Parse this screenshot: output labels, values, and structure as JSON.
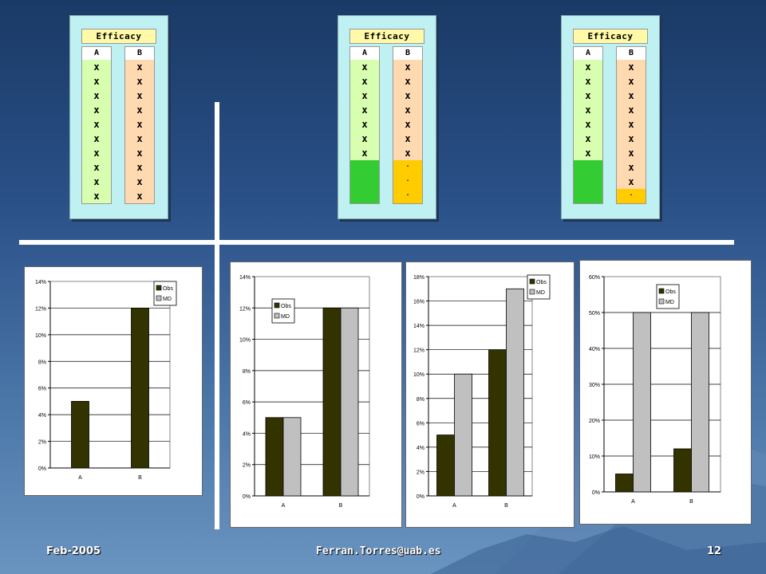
{
  "tables": [
    {
      "title": "Efficacy",
      "col_a": {
        "header": "A",
        "marks": [
          "x",
          "x",
          "x",
          "x",
          "x",
          "x",
          "x",
          "x",
          "x",
          "x"
        ],
        "filled_color": "#33cc33",
        "filled_count": 0,
        "filler": []
      },
      "col_b": {
        "header": "B",
        "marks": [
          "x",
          "x",
          "x",
          "x",
          "x",
          "x",
          "x",
          "x",
          "x",
          "x"
        ],
        "filled_color": "#ffcc00",
        "filled_count": 0,
        "filler": []
      }
    },
    {
      "title": "Efficacy",
      "col_a": {
        "header": "A",
        "marks": [
          "x",
          "x",
          "x",
          "x",
          "x",
          "x",
          "x"
        ],
        "filled_color": "#33cc33",
        "filled_count": 3,
        "filler": []
      },
      "col_b": {
        "header": "B",
        "marks": [
          "x",
          "x",
          "x",
          "x",
          "x",
          "x",
          "x"
        ],
        "filled_color": "#ffcc00",
        "filled_count": 3,
        "filler": [
          ".",
          ".",
          "."
        ]
      }
    },
    {
      "title": "Efficacy",
      "col_a": {
        "header": "A",
        "marks": [
          "x",
          "x",
          "x",
          "x",
          "x",
          "x",
          "x"
        ],
        "filled_color": "#33cc33",
        "filled_count": 3,
        "filler": []
      },
      "col_b": {
        "header": "B",
        "marks": [
          "x",
          "x",
          "x",
          "x",
          "x",
          "x",
          "x",
          "x",
          "x"
        ],
        "filled_color": "#ffcc00",
        "filled_count": 1,
        "filler": [
          "."
        ]
      }
    }
  ],
  "chart_data": [
    {
      "type": "bar",
      "categories": [
        "A",
        "B"
      ],
      "series": [
        {
          "name": "Obs",
          "values": [
            5,
            12
          ],
          "color": "#333300"
        }
      ],
      "legend_entries": [
        "Obs",
        "MD"
      ],
      "yticks": [
        "0%",
        "2%",
        "4%",
        "6%",
        "8%",
        "10%",
        "12%",
        "14%"
      ],
      "ylim": [
        0,
        14
      ],
      "legend": "top-right",
      "grid": true
    },
    {
      "type": "bar",
      "categories": [
        "A",
        "B"
      ],
      "series": [
        {
          "name": "Obs",
          "values": [
            5,
            12
          ],
          "color": "#333300"
        },
        {
          "name": "MD",
          "values": [
            5,
            12
          ],
          "color": "#c0c0c0"
        }
      ],
      "legend_entries": [
        "Obs",
        "MD"
      ],
      "yticks": [
        "0%",
        "2%",
        "4%",
        "6%",
        "8%",
        "10%",
        "12%",
        "14%"
      ],
      "ylim": [
        0,
        14
      ],
      "legend": "top-left",
      "grid": true
    },
    {
      "type": "bar",
      "categories": [
        "A",
        "B"
      ],
      "series": [
        {
          "name": "Obs",
          "values": [
            5,
            12
          ],
          "color": "#333300"
        },
        {
          "name": "MD",
          "values": [
            10,
            17
          ],
          "color": "#c0c0c0"
        }
      ],
      "legend_entries": [
        "Obs",
        "MD"
      ],
      "yticks": [
        "0%",
        "2%",
        "4%",
        "6%",
        "8%",
        "10%",
        "12%",
        "14%",
        "16%",
        "18%"
      ],
      "ylim": [
        0,
        18
      ],
      "legend": "top-right",
      "grid": true
    },
    {
      "type": "bar",
      "categories": [
        "A",
        "B"
      ],
      "series": [
        {
          "name": "Obs",
          "values": [
            5,
            12
          ],
          "color": "#333300"
        },
        {
          "name": "MD",
          "values": [
            50,
            50
          ],
          "color": "#c0c0c0"
        }
      ],
      "legend_entries": [
        "Obs",
        "MD"
      ],
      "yticks": [
        "0%",
        "10%",
        "20%",
        "30%",
        "40%",
        "50%",
        "60%"
      ],
      "ylim": [
        0,
        60
      ],
      "legend": "top-left",
      "grid": true
    }
  ],
  "footer": {
    "date": "Feb-2005",
    "email": "Ferran.Torres@uab.es",
    "page": "12"
  }
}
